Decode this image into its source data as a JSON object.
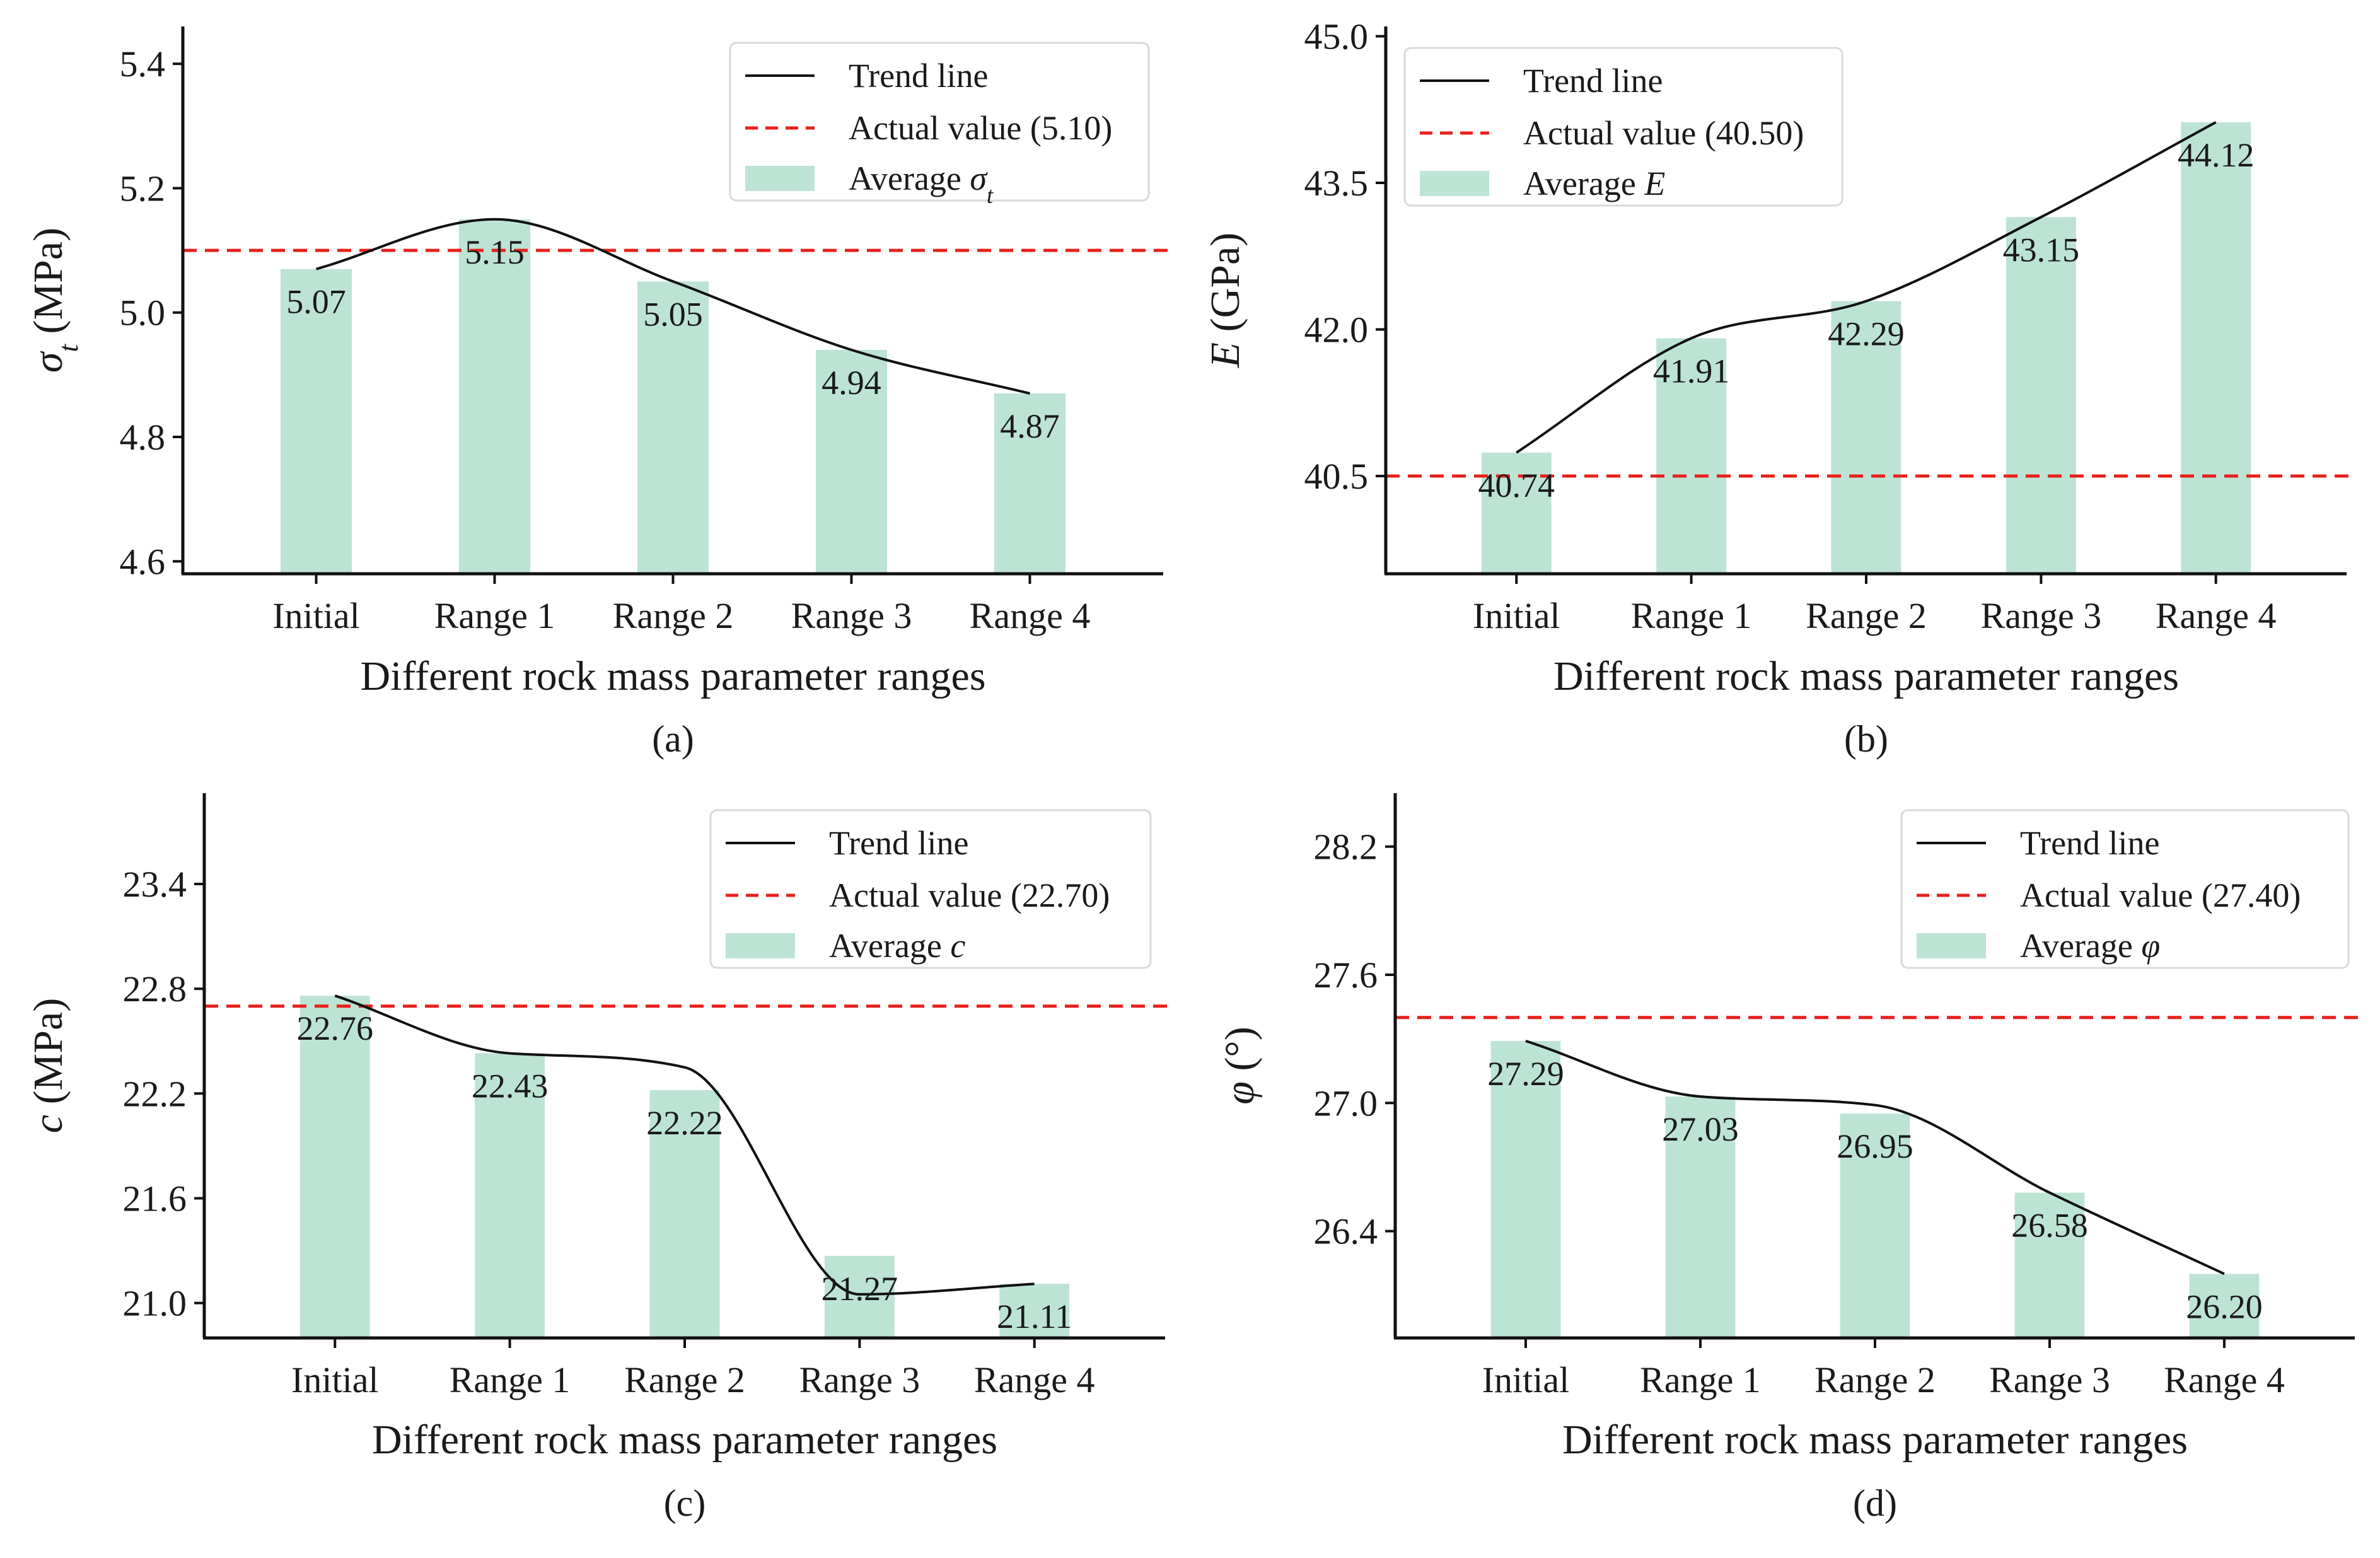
{
  "figure": {
    "colors": {
      "bar": "#bde3d4",
      "trend": "#111111",
      "actual": "#e8201c",
      "axis": "#111111",
      "legend_border": "#d9d9d9"
    }
  },
  "chart_data": [
    {
      "type": "bar",
      "panel_label": "(a)",
      "categories": [
        "Initial",
        "Range 1",
        "Range 2",
        "Range 3",
        "Range 4"
      ],
      "values": [
        5.07,
        5.15,
        5.05,
        4.94,
        4.87
      ],
      "bar_labels": [
        "5.07",
        "5.15",
        "5.05",
        "4.94",
        "4.87"
      ],
      "trend_line": [
        5.07,
        5.15,
        5.05,
        4.94,
        4.87
      ],
      "actual_value": 5.1,
      "ylim": [
        4.58,
        5.46
      ],
      "yticks": [
        4.6,
        4.8,
        5.0,
        5.2,
        5.4
      ],
      "ytick_labels": [
        "4.6",
        "4.8",
        "5.0",
        "5.2",
        "5.4"
      ],
      "ylabel": {
        "symbol": "σ",
        "subscript": "t",
        "unit": " (MPa)"
      },
      "xlabel": "Different rock mass parameter ranges",
      "legend": {
        "position": "top-right",
        "trend": "Trend line",
        "actual": "Actual value (5.10)",
        "average": {
          "text": "Average ",
          "symbol": "σ",
          "subscript": "t"
        }
      }
    },
    {
      "type": "bar",
      "panel_label": "(b)",
      "categories": [
        "Initial",
        "Range 1",
        "Range 2",
        "Range 3",
        "Range 4"
      ],
      "values": [
        40.74,
        41.91,
        42.29,
        43.15,
        44.12
      ],
      "bar_labels": [
        "40.74",
        "41.91",
        "42.29",
        "43.15",
        "44.12"
      ],
      "trend_line": [
        40.74,
        41.91,
        42.29,
        43.15,
        44.12
      ],
      "actual_value": 40.5,
      "ylim": [
        39.5,
        45.1
      ],
      "yticks": [
        40.5,
        42.0,
        43.5,
        45.0
      ],
      "ytick_labels": [
        "40.5",
        "42.0",
        "43.5",
        "45.0"
      ],
      "ylabel": {
        "symbol": "E",
        "subscript": "",
        "unit": " (GPa)"
      },
      "xlabel": "Different rock mass parameter ranges",
      "legend": {
        "position": "top-left",
        "trend": "Trend line",
        "actual": "Actual value (40.50)",
        "average": {
          "text": "Average ",
          "symbol": "E",
          "subscript": ""
        }
      }
    },
    {
      "type": "bar",
      "panel_label": "(c)",
      "categories": [
        "Initial",
        "Range 1",
        "Range 2",
        "Range 3",
        "Range 4"
      ],
      "values": [
        22.76,
        22.43,
        22.22,
        21.27,
        21.11
      ],
      "bar_labels": [
        "22.76",
        "22.43",
        "22.22",
        "21.27",
        "21.11"
      ],
      "trend_line": [
        22.76,
        22.43,
        22.35,
        21.05,
        21.11
      ],
      "actual_value": 22.7,
      "ylim": [
        20.8,
        23.92
      ],
      "yticks": [
        21.0,
        21.6,
        22.2,
        22.8,
        23.4
      ],
      "ytick_labels": [
        "21.0",
        "21.6",
        "22.2",
        "22.8",
        "23.4"
      ],
      "ylabel": {
        "symbol": "c",
        "subscript": "",
        "unit": " (MPa)"
      },
      "xlabel": "Different rock mass parameter ranges",
      "legend": {
        "position": "top-right",
        "trend": "Trend line",
        "actual": "Actual value (22.70)",
        "average": {
          "text": "Average ",
          "symbol": "c",
          "subscript": ""
        }
      }
    },
    {
      "type": "bar",
      "panel_label": "(d)",
      "categories": [
        "Initial",
        "Range 1",
        "Range 2",
        "Range 3",
        "Range 4"
      ],
      "values": [
        27.29,
        27.03,
        26.95,
        26.58,
        26.2
      ],
      "bar_labels": [
        "27.29",
        "27.03",
        "26.95",
        "26.58",
        "26.20"
      ],
      "trend_line": [
        27.29,
        27.03,
        26.99,
        26.58,
        26.2
      ],
      "actual_value": 27.4,
      "ylim": [
        25.9,
        28.45
      ],
      "yticks": [
        26.4,
        27.0,
        27.6,
        28.2
      ],
      "ytick_labels": [
        "26.4",
        "27.0",
        "27.6",
        "28.2"
      ],
      "ylabel": {
        "symbol": "φ",
        "subscript": "",
        "unit": " (°)"
      },
      "xlabel": "Different rock mass parameter ranges",
      "legend": {
        "position": "top-right",
        "trend": "Trend line",
        "actual": "Actual value (27.40)",
        "average": {
          "text": "Average ",
          "symbol": "φ",
          "subscript": ""
        }
      }
    }
  ]
}
